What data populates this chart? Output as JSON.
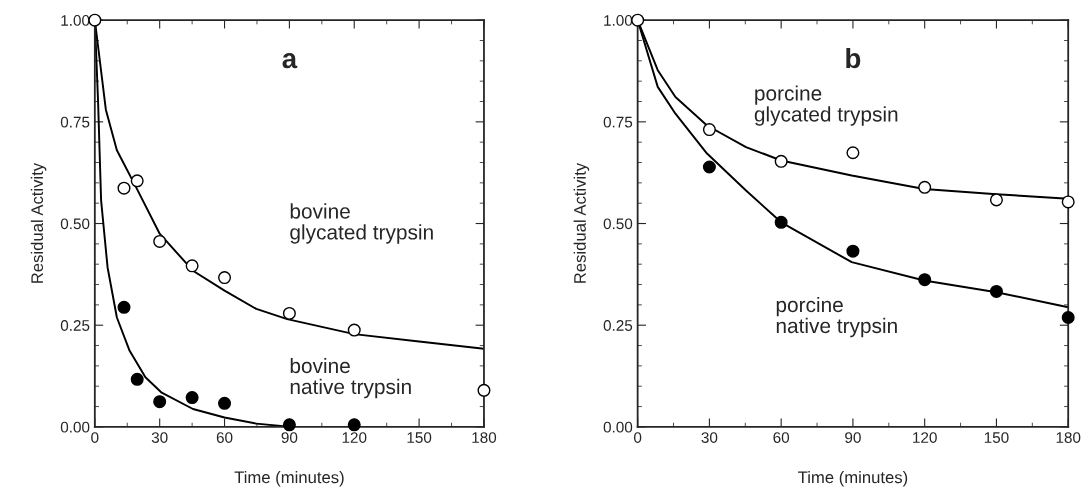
{
  "chart_data": [
    {
      "type": "scatter",
      "title": "a",
      "xlabel": "Time (minutes)",
      "ylabel": "Residual Activity",
      "xlim": [
        0,
        180
      ],
      "xticks": [
        0,
        30,
        60,
        90,
        120,
        150,
        180
      ],
      "ylim": [
        0,
        1
      ],
      "yticks": [
        {
          "value": 0,
          "label": "0.00"
        },
        {
          "value": 0.25,
          "label": "0.25"
        },
        {
          "value": 0.5,
          "label": "0.50"
        },
        {
          "value": 0.75,
          "label": "0.75"
        },
        {
          "value": 1,
          "label": "1.00"
        }
      ],
      "grid": false,
      "legend": false,
      "series": [
        {
          "type": "line",
          "marker": "none",
          "color": "#000000",
          "x": [
            0,
            5.1,
            10.2,
            19,
            30,
            45.4,
            60,
            74.7,
            89,
            120,
            150,
            180
          ],
          "values": [
            1,
            0.78,
            0.68,
            0.59,
            0.475,
            0.384,
            0.335,
            0.29,
            0.265,
            0.228,
            0.21,
            0.192
          ]
        },
        {
          "type": "line",
          "marker": "none",
          "color": "#000000",
          "x": [
            0,
            1.5,
            2.9,
            5.9,
            10.2,
            16.1,
            23.4,
            30.7,
            45.4,
            60,
            74.7,
            91,
            180
          ],
          "values": [
            1,
            0.8,
            0.557,
            0.392,
            0.269,
            0.187,
            0.122,
            0.085,
            0.044,
            0.023,
            0.008,
            0,
            0
          ]
        },
        {
          "marker": "circle",
          "color": "#ffffff",
          "x": [
            0,
            13.5,
            19.6,
            30,
            45,
            60,
            90,
            120,
            180
          ],
          "values": [
            1,
            0.587,
            0.605,
            0.456,
            0.396,
            0.367,
            0.279,
            0.238,
            0.09
          ]
        },
        {
          "marker": "circle",
          "color": "#000000",
          "x": [
            13.5,
            19.6,
            30,
            45,
            60,
            90,
            120
          ],
          "values": [
            0.294,
            0.117,
            0.062,
            0.072,
            0.058,
            0.005,
            0.005
          ]
        }
      ],
      "annotations": [
        "bovine\nglycated trypsin",
        "bovine\nnative trypsin"
      ]
    },
    {
      "type": "scatter",
      "title": "b",
      "xlabel": "Time (minutes)",
      "ylabel": "Residual Activity",
      "xlim": [
        0,
        180
      ],
      "xticks": [
        0,
        30,
        60,
        90,
        120,
        150,
        180
      ],
      "ylim": [
        0,
        1
      ],
      "yticks": [
        {
          "value": 0,
          "label": "0.00"
        },
        {
          "value": 0.25,
          "label": "0.25"
        },
        {
          "value": 0.5,
          "label": "0.50"
        },
        {
          "value": 0.75,
          "label": "0.75"
        },
        {
          "value": 1,
          "label": "1.00"
        }
      ],
      "grid": false,
      "legend": false,
      "series": [
        {
          "type": "line",
          "marker": "none",
          "color": "#000000",
          "x": [
            0,
            8.4,
            15.8,
            29,
            45.3,
            60,
            89.5,
            119.8,
            150,
            180
          ],
          "values": [
            1,
            0.877,
            0.811,
            0.741,
            0.688,
            0.655,
            0.618,
            0.585,
            0.572,
            0.561
          ]
        },
        {
          "type": "line",
          "marker": "none",
          "color": "#000000",
          "x": [
            0,
            8.4,
            15.8,
            29,
            45.3,
            60,
            89.5,
            119.8,
            150,
            180
          ],
          "values": [
            1,
            0.836,
            0.77,
            0.672,
            0.581,
            0.503,
            0.405,
            0.36,
            0.331,
            0.294
          ]
        },
        {
          "marker": "circle",
          "color": "#ffffff",
          "x": [
            0,
            30,
            60,
            90,
            120,
            150,
            180
          ],
          "values": [
            1,
            0.731,
            0.653,
            0.674,
            0.589,
            0.558,
            0.553
          ]
        },
        {
          "marker": "circle",
          "color": "#000000",
          "x": [
            30,
            60,
            90,
            120,
            150,
            180
          ],
          "values": [
            0.639,
            0.503,
            0.432,
            0.362,
            0.333,
            0.269
          ]
        }
      ],
      "annotations": [
        "porcine\nglycated trypsin",
        "porcine\nnative trypsin"
      ]
    }
  ]
}
